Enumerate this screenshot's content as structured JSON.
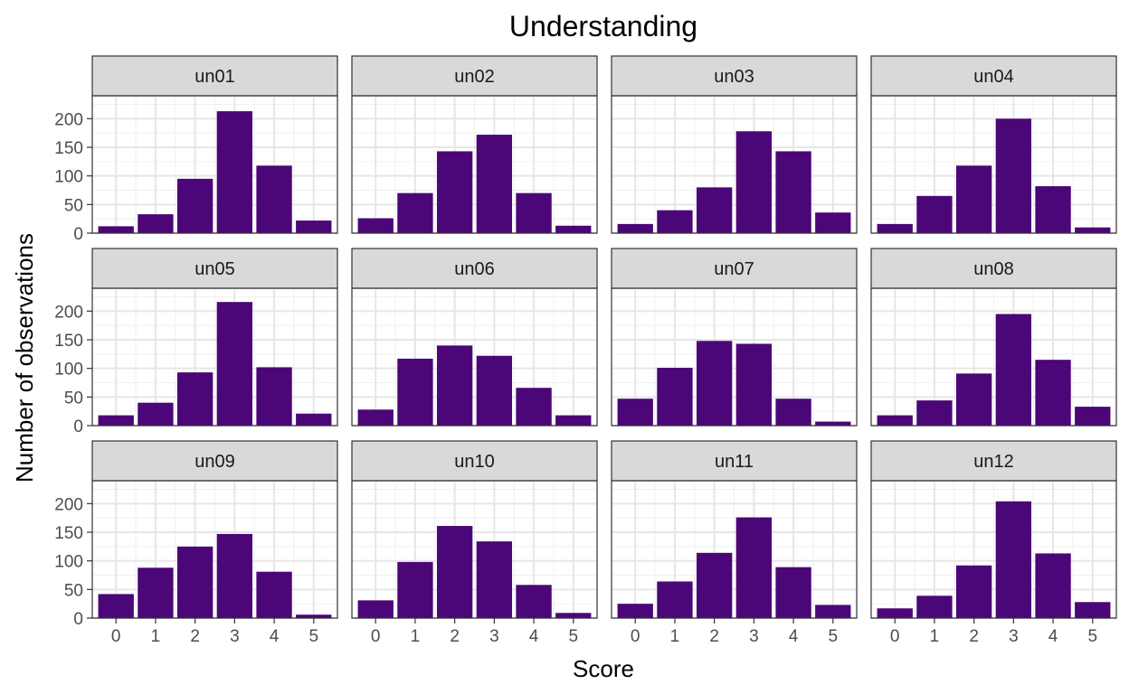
{
  "chart_data": {
    "type": "bar",
    "title": "Understanding",
    "xlabel": "Score",
    "ylabel": "Number of observations",
    "categories": [
      "0",
      "1",
      "2",
      "3",
      "4",
      "5"
    ],
    "ylim": [
      0,
      240
    ],
    "yticks": [
      0,
      50,
      100,
      150,
      200
    ],
    "grid": true,
    "bar_color": "#4B0677",
    "facet_layout": "3 rows x 4 columns",
    "panels": [
      {
        "name": "un01",
        "values": [
          12,
          33,
          95,
          213,
          118,
          22
        ]
      },
      {
        "name": "un02",
        "values": [
          26,
          70,
          143,
          172,
          70,
          13
        ]
      },
      {
        "name": "un03",
        "values": [
          16,
          40,
          80,
          178,
          143,
          36
        ]
      },
      {
        "name": "un04",
        "values": [
          16,
          65,
          118,
          200,
          82,
          10
        ]
      },
      {
        "name": "un05",
        "values": [
          18,
          40,
          93,
          216,
          102,
          21
        ]
      },
      {
        "name": "un06",
        "values": [
          28,
          117,
          140,
          122,
          66,
          18
        ]
      },
      {
        "name": "un07",
        "values": [
          47,
          101,
          148,
          143,
          47,
          7
        ]
      },
      {
        "name": "un08",
        "values": [
          18,
          44,
          91,
          195,
          115,
          33
        ]
      },
      {
        "name": "un09",
        "values": [
          42,
          88,
          125,
          147,
          81,
          6
        ]
      },
      {
        "name": "un10",
        "values": [
          31,
          98,
          161,
          134,
          58,
          9
        ]
      },
      {
        "name": "un11",
        "values": [
          25,
          64,
          114,
          176,
          89,
          23
        ]
      },
      {
        "name": "un12",
        "values": [
          17,
          39,
          92,
          204,
          113,
          28
        ]
      }
    ]
  }
}
